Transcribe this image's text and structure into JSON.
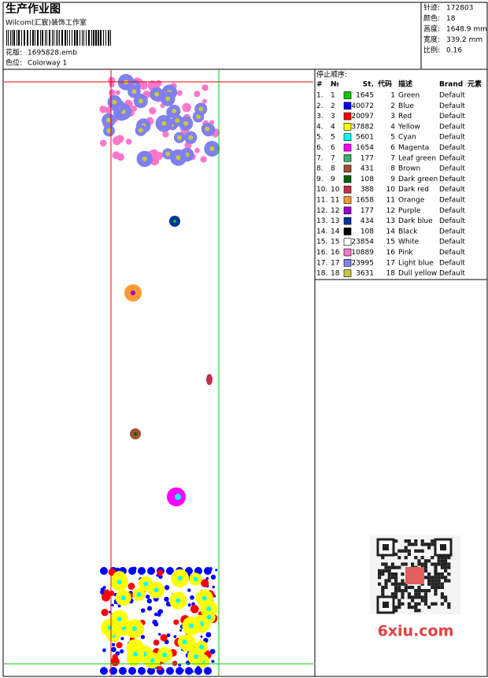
{
  "header": {
    "title": "生产作业图",
    "company": "Wilcom(汇宸)装饰工作室",
    "design_label": "花版:",
    "design": "1695828.emb",
    "colorway_label": "色位:",
    "colorway": "Colorway 1"
  },
  "stats": [
    {
      "label": "针迹:",
      "value": "172803"
    },
    {
      "label": "颜色:",
      "value": "18"
    },
    {
      "label": "高度:",
      "value": "1648.9 mm"
    },
    {
      "label": "宽度:",
      "value": "339.2 mm"
    },
    {
      "label": "比例:",
      "value": "0.16"
    }
  ],
  "table": {
    "title": "停止顺序:",
    "columns": [
      "#",
      "№",
      "St.",
      "代码",
      "描述",
      "Brand",
      "元素"
    ],
    "rows": [
      {
        "n": "1.",
        "id": 1,
        "color": "#00c800",
        "st": 1645,
        "code": 1,
        "desc": "Green",
        "brand": "Default"
      },
      {
        "n": "2.",
        "id": 2,
        "color": "#0000ff",
        "st": 40072,
        "code": 2,
        "desc": "Blue",
        "brand": "Default"
      },
      {
        "n": "3.",
        "id": 3,
        "color": "#ff0000",
        "st": 20097,
        "code": 3,
        "desc": "Red",
        "brand": "Default"
      },
      {
        "n": "4.",
        "id": 4,
        "color": "#ffff00",
        "st": 37882,
        "code": 4,
        "desc": "Yellow",
        "brand": "Default"
      },
      {
        "n": "5.",
        "id": 5,
        "color": "#00ffff",
        "st": 5601,
        "code": 5,
        "desc": "Cyan",
        "brand": "Default"
      },
      {
        "n": "6.",
        "id": 6,
        "color": "#ff00ff",
        "st": 1654,
        "code": 6,
        "desc": "Magenta",
        "brand": "Default"
      },
      {
        "n": "7.",
        "id": 7,
        "color": "#3cb371",
        "st": 177,
        "code": 7,
        "desc": "Leaf green",
        "brand": "Default"
      },
      {
        "n": "8.",
        "id": 8,
        "color": "#a0522d",
        "st": 431,
        "code": 8,
        "desc": "Brown",
        "brand": "Default"
      },
      {
        "n": "9.",
        "id": 9,
        "color": "#006400",
        "st": 108,
        "code": 9,
        "desc": "Dark green",
        "brand": "Default"
      },
      {
        "n": "10.",
        "id": 10,
        "color": "#c0304a",
        "st": 388,
        "code": 10,
        "desc": "Dark red",
        "brand": "Default"
      },
      {
        "n": "11.",
        "id": 11,
        "color": "#ff9933",
        "st": 1658,
        "code": 11,
        "desc": "Orange",
        "brand": "Default"
      },
      {
        "n": "12.",
        "id": 12,
        "color": "#9900cc",
        "st": 177,
        "code": 12,
        "desc": "Purple",
        "brand": "Default"
      },
      {
        "n": "13.",
        "id": 13,
        "color": "#003399",
        "st": 434,
        "code": 13,
        "desc": "Dark blue",
        "brand": "Default"
      },
      {
        "n": "14.",
        "id": 14,
        "color": "#000000",
        "st": 108,
        "code": 14,
        "desc": "Black",
        "brand": "Default"
      },
      {
        "n": "15.",
        "id": 15,
        "color": "#ffffff",
        "st": 23854,
        "code": 15,
        "desc": "White",
        "brand": "Default"
      },
      {
        "n": "16.",
        "id": 16,
        "color": "#ff77cc",
        "st": 10889,
        "code": 16,
        "desc": "Pink",
        "brand": "Default"
      },
      {
        "n": "17.",
        "id": 17,
        "color": "#8080ee",
        "st": 23995,
        "code": 17,
        "desc": "Light blue",
        "brand": "Default"
      },
      {
        "n": "18.",
        "id": 18,
        "color": "#c8c840",
        "st": 3631,
        "code": 18,
        "desc": "Dull yellow",
        "brand": "Default"
      }
    ]
  },
  "watermark": "6xiu.com"
}
